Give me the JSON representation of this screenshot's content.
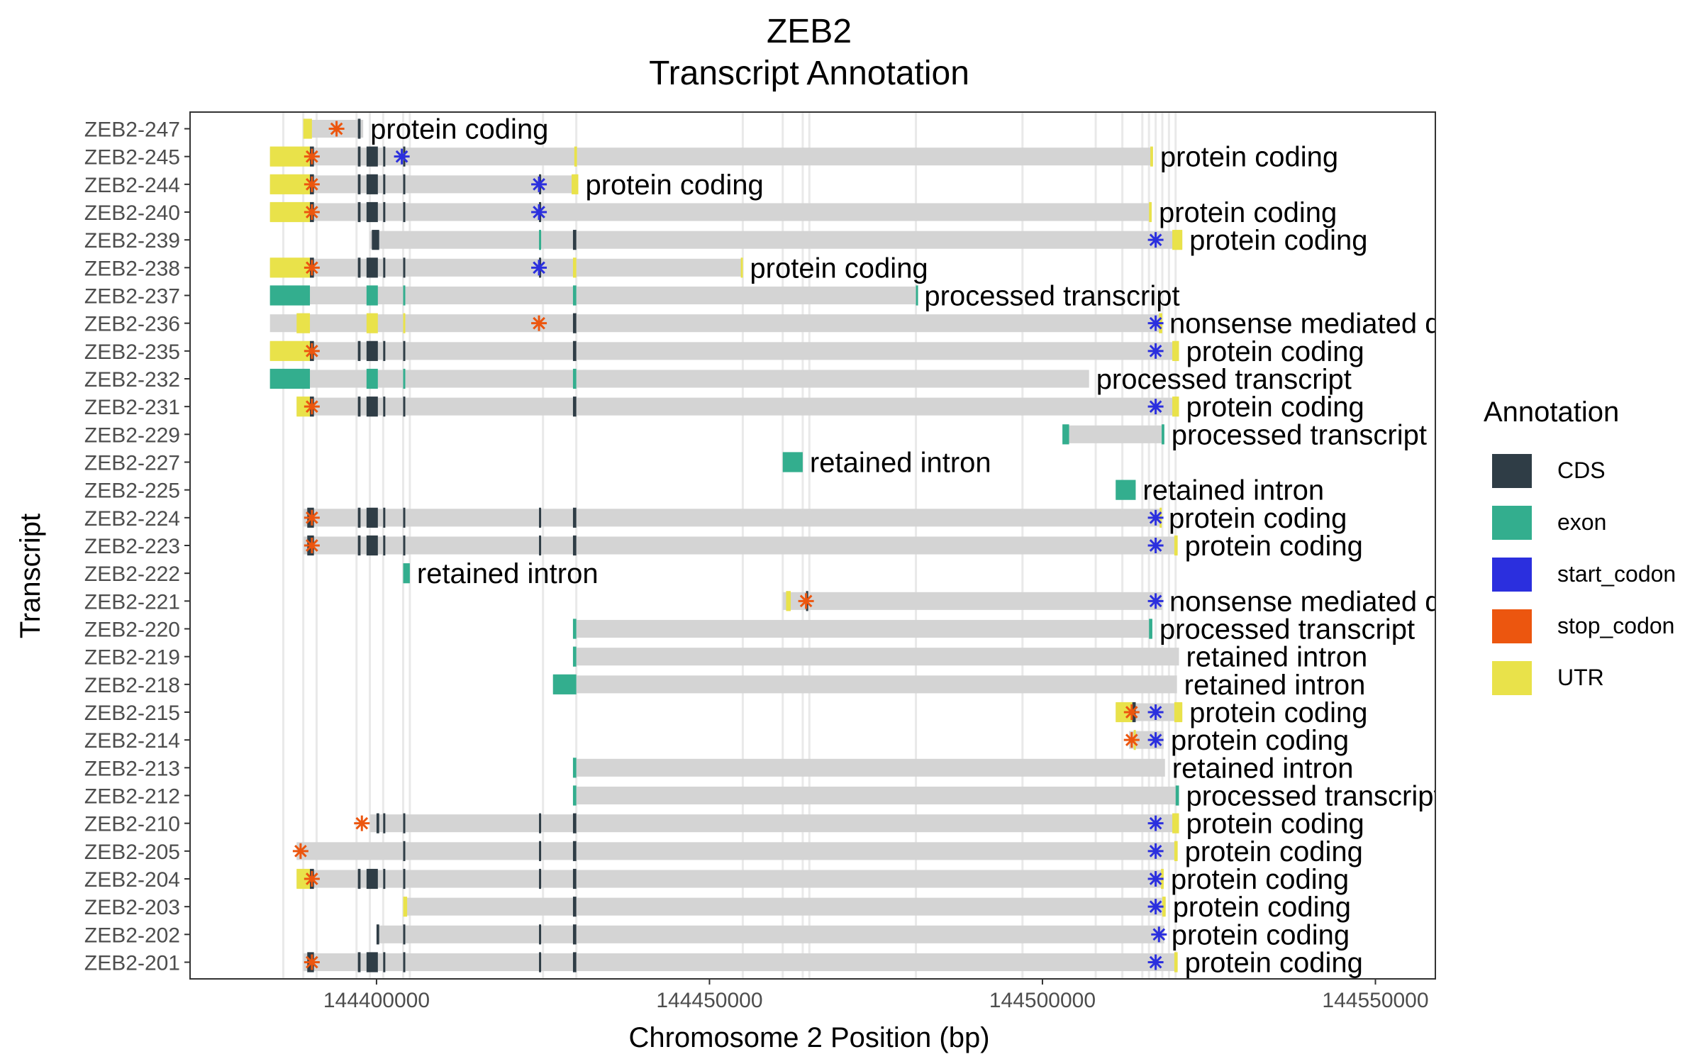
{
  "chart_data": {
    "type": "gene_track",
    "title_line1": "ZEB2",
    "title_line2": "Transcript Annotation",
    "xlabel": "Chromosome 2 Position (bp)",
    "ylabel": "Transcript",
    "xlim": [
      144372000,
      144559000
    ],
    "x_ticks": [
      144400000,
      144450000,
      144500000,
      144550000
    ],
    "x_tick_labels": [
      "144400000",
      "144450000",
      "144500000",
      "144550000"
    ],
    "legend": {
      "title": "Annotation",
      "position": "right",
      "entries": [
        {
          "label": "CDS",
          "color": "#2f3d46"
        },
        {
          "label": "exon",
          "color": "#33ae8e"
        },
        {
          "label": "start_codon",
          "color": "#2b2fde"
        },
        {
          "label": "stop_codon",
          "color": "#ec560f"
        },
        {
          "label": "UTR",
          "color": "#e9e24a"
        }
      ]
    },
    "vlines": [
      144386000,
      144389000,
      144391000,
      144397000,
      144399000,
      144401000,
      144404000,
      144405000,
      144425000,
      144430000,
      144455000,
      144461000,
      144464000,
      144465000,
      144481000,
      144497000,
      144508000,
      144512000,
      144515000,
      144516000,
      144517000,
      144518000,
      144519000,
      144520000
    ],
    "transcripts": [
      {
        "name": "ZEB2-247",
        "label": "protein coding",
        "start": 144389000,
        "end": 144398000,
        "utr": [
          [
            144389000,
            144390300
          ]
        ],
        "cds": [
          [
            144397200,
            144397600
          ]
        ],
        "exon": [],
        "stop": [
          144394000
        ],
        "startc": []
      },
      {
        "name": "ZEB2-245",
        "label": "protein coding",
        "start": 144384000,
        "end": 144516600,
        "utr": [
          [
            144384000,
            144390000
          ],
          [
            144429700,
            144430100
          ],
          [
            144516200,
            144516600
          ]
        ],
        "cds": [
          [
            144390000,
            144390600
          ],
          [
            144397200,
            144397600
          ],
          [
            144398500,
            144400200
          ],
          [
            144401000,
            144401300
          ],
          [
            144404000,
            144404300
          ]
        ],
        "exon": [],
        "stop": [
          144390300
        ],
        "startc": [
          144403800
        ]
      },
      {
        "name": "ZEB2-244",
        "label": "protein coding",
        "start": 144384000,
        "end": 144430300,
        "utr": [
          [
            144384000,
            144390000
          ],
          [
            144429300,
            144430300
          ]
        ],
        "cds": [
          [
            144390000,
            144390600
          ],
          [
            144397200,
            144397600
          ],
          [
            144398500,
            144400200
          ],
          [
            144401000,
            144401300
          ],
          [
            144404000,
            144404300
          ],
          [
            144424400,
            144424700
          ]
        ],
        "exon": [],
        "stop": [
          144390300
        ],
        "startc": [
          144424400
        ]
      },
      {
        "name": "ZEB2-240",
        "label": "protein coding",
        "start": 144384000,
        "end": 144516400,
        "utr": [
          [
            144384000,
            144390000
          ],
          [
            144516000,
            144516400
          ]
        ],
        "cds": [
          [
            144390000,
            144390600
          ],
          [
            144397200,
            144397600
          ],
          [
            144398500,
            144400200
          ],
          [
            144401000,
            144401300
          ],
          [
            144404000,
            144404300
          ],
          [
            144424400,
            144424700
          ]
        ],
        "exon": [],
        "stop": [
          144390300
        ],
        "startc": [
          144424400
        ]
      },
      {
        "name": "ZEB2-239",
        "label": "protein coding",
        "start": 144399000,
        "end": 144521000,
        "utr": [
          [
            144519500,
            144521000
          ]
        ],
        "cds": [
          [
            144399300,
            144400400
          ],
          [
            144429500,
            144430000
          ]
        ],
        "exon": [
          [
            144424400,
            144424600
          ]
        ],
        "stop": [],
        "startc": [
          144517000
        ]
      },
      {
        "name": "ZEB2-238",
        "label": "protein coding",
        "start": 144384000,
        "end": 144455000,
        "utr": [
          [
            144384000,
            144390000
          ],
          [
            144429500,
            144430000
          ],
          [
            144454700,
            144455000
          ]
        ],
        "cds": [
          [
            144390000,
            144390600
          ],
          [
            144397200,
            144397600
          ],
          [
            144398500,
            144400200
          ],
          [
            144401000,
            144401300
          ],
          [
            144404000,
            144404300
          ],
          [
            144424400,
            144424700
          ]
        ],
        "exon": [],
        "stop": [
          144390300
        ],
        "startc": [
          144424400
        ]
      },
      {
        "name": "ZEB2-237",
        "label": "processed transcript",
        "start": 144384000,
        "end": 144481200,
        "utr": [],
        "cds": [],
        "exon": [
          [
            144384000,
            144390000
          ],
          [
            144398500,
            144400200
          ],
          [
            144404000,
            144404300
          ],
          [
            144429500,
            144430000
          ],
          [
            144481000,
            144481200
          ]
        ],
        "stop": [],
        "startc": []
      },
      {
        "name": "ZEB2-236",
        "label": "nonsense mediated decay",
        "start": 144384000,
        "end": 144518000,
        "utr": [
          [
            144388000,
            144390000
          ],
          [
            144398500,
            144400200
          ],
          [
            144404000,
            144404300
          ],
          [
            144517500,
            144518000
          ]
        ],
        "cds": [
          [
            144429500,
            144430000
          ]
        ],
        "exon": [],
        "stop": [
          144424400
        ],
        "startc": [
          144517000
        ]
      },
      {
        "name": "ZEB2-235",
        "label": "protein coding",
        "start": 144384000,
        "end": 144520500,
        "utr": [
          [
            144384000,
            144390000
          ],
          [
            144519500,
            144520500
          ]
        ],
        "cds": [
          [
            144390000,
            144390600
          ],
          [
            144397200,
            144397600
          ],
          [
            144398500,
            144400200
          ],
          [
            144401000,
            144401300
          ],
          [
            144404000,
            144404300
          ],
          [
            144429500,
            144430000
          ]
        ],
        "exon": [],
        "stop": [
          144390300
        ],
        "startc": [
          144517000
        ]
      },
      {
        "name": "ZEB2-232",
        "label": "processed transcript",
        "start": 144384000,
        "end": 144507000,
        "utr": [],
        "cds": [],
        "exon": [
          [
            144384000,
            144390000
          ],
          [
            144398500,
            144400200
          ],
          [
            144404000,
            144404300
          ],
          [
            144429500,
            144430000
          ]
        ],
        "stop": [],
        "startc": []
      },
      {
        "name": "ZEB2-231",
        "label": "protein coding",
        "start": 144388000,
        "end": 144520500,
        "utr": [
          [
            144388000,
            144390000
          ],
          [
            144519500,
            144520500
          ]
        ],
        "cds": [
          [
            144390000,
            144390600
          ],
          [
            144397200,
            144397600
          ],
          [
            144398500,
            144400200
          ],
          [
            144401000,
            144401300
          ],
          [
            144404000,
            144404300
          ],
          [
            144429500,
            144430000
          ]
        ],
        "exon": [],
        "stop": [
          144390300
        ],
        "startc": [
          144517000
        ]
      },
      {
        "name": "ZEB2-229",
        "label": "processed transcript",
        "start": 144503000,
        "end": 144518300,
        "utr": [],
        "cds": [],
        "exon": [
          [
            144503000,
            144504000
          ],
          [
            144517900,
            144518300
          ]
        ],
        "stop": [],
        "startc": []
      },
      {
        "name": "ZEB2-227",
        "label": "retained intron",
        "start": 144461000,
        "end": 144464000,
        "utr": [],
        "cds": [],
        "exon": [
          [
            144461000,
            144464000
          ]
        ],
        "stop": [],
        "startc": []
      },
      {
        "name": "ZEB2-225",
        "label": "retained intron",
        "start": 144511000,
        "end": 144514000,
        "utr": [],
        "cds": [],
        "exon": [
          [
            144511000,
            144514000
          ]
        ],
        "stop": [],
        "startc": []
      },
      {
        "name": "ZEB2-224",
        "label": "protein coding",
        "start": 144389000,
        "end": 144517900,
        "utr": [
          [
            144517600,
            144517900
          ]
        ],
        "cds": [
          [
            144389600,
            144390600
          ],
          [
            144397200,
            144397600
          ],
          [
            144398500,
            144400200
          ],
          [
            144401000,
            144401300
          ],
          [
            144404000,
            144404300
          ],
          [
            144424400,
            144424700
          ],
          [
            144429500,
            144430000
          ]
        ],
        "exon": [],
        "stop": [
          144390300
        ],
        "startc": [
          144517000
        ]
      },
      {
        "name": "ZEB2-223",
        "label": "protein coding",
        "start": 144389000,
        "end": 144520300,
        "utr": [
          [
            144519800,
            144520300
          ]
        ],
        "cds": [
          [
            144389600,
            144390600
          ],
          [
            144397200,
            144397600
          ],
          [
            144398500,
            144400200
          ],
          [
            144401000,
            144401300
          ],
          [
            144404000,
            144404300
          ],
          [
            144424400,
            144424700
          ],
          [
            144429500,
            144430000
          ]
        ],
        "exon": [],
        "stop": [
          144390300
        ],
        "startc": [
          144517000
        ]
      },
      {
        "name": "ZEB2-222",
        "label": "retained intron",
        "start": 144404000,
        "end": 144405000,
        "utr": [],
        "cds": [],
        "exon": [
          [
            144404000,
            144405000
          ]
        ],
        "stop": [],
        "startc": []
      },
      {
        "name": "ZEB2-221",
        "label": "nonsense mediated decay",
        "start": 144461000,
        "end": 144518000,
        "utr": [
          [
            144461500,
            144462200
          ]
        ],
        "cds": [
          [
            144464500,
            144464800
          ]
        ],
        "exon": [],
        "stop": [
          144464500
        ],
        "startc": [
          144517000
        ]
      },
      {
        "name": "ZEB2-220",
        "label": "processed transcript",
        "start": 144429500,
        "end": 144516500,
        "utr": [],
        "cds": [],
        "exon": [
          [
            144429500,
            144430000
          ],
          [
            144516000,
            144516500
          ]
        ],
        "stop": [],
        "startc": []
      },
      {
        "name": "ZEB2-219",
        "label": "retained intron",
        "start": 144429500,
        "end": 144520500,
        "utr": [],
        "cds": [],
        "exon": [
          [
            144429500,
            144430000
          ]
        ],
        "stop": [],
        "startc": []
      },
      {
        "name": "ZEB2-218",
        "label": "retained intron",
        "start": 144426500,
        "end": 144520200,
        "utr": [],
        "cds": [],
        "exon": [
          [
            144426500,
            144430000
          ]
        ],
        "stop": [],
        "startc": []
      },
      {
        "name": "ZEB2-215",
        "label": "protein coding",
        "start": 144511000,
        "end": 144521000,
        "utr": [
          [
            144511000,
            144513500
          ],
          [
            144519800,
            144521000
          ]
        ],
        "cds": [
          [
            144513500,
            144514000
          ]
        ],
        "exon": [],
        "stop": [
          144513400
        ],
        "startc": [
          144517000
        ]
      },
      {
        "name": "ZEB2-214",
        "label": "protein coding",
        "start": 144513000,
        "end": 144518200,
        "utr": [
          [
            144513700,
            144514000
          ]
        ],
        "cds": [],
        "exon": [],
        "stop": [
          144513400
        ],
        "startc": [
          144517000
        ]
      },
      {
        "name": "ZEB2-213",
        "label": "retained intron",
        "start": 144429500,
        "end": 144518400,
        "utr": [],
        "cds": [],
        "exon": [
          [
            144429500,
            144430000
          ]
        ],
        "stop": [],
        "startc": []
      },
      {
        "name": "ZEB2-212",
        "label": "processed transcript",
        "start": 144429500,
        "end": 144520500,
        "utr": [],
        "cds": [],
        "exon": [
          [
            144429500,
            144430000
          ],
          [
            144520000,
            144520500
          ]
        ],
        "stop": [],
        "startc": []
      },
      {
        "name": "ZEB2-210",
        "label": "protein coding",
        "start": 144399000,
        "end": 144520500,
        "utr": [
          [
            144519500,
            144520500
          ]
        ],
        "cds": [
          [
            144400000,
            144400400
          ],
          [
            144401000,
            144401300
          ],
          [
            144404000,
            144404300
          ],
          [
            144424400,
            144424700
          ],
          [
            144429500,
            144430000
          ]
        ],
        "exon": [],
        "stop": [
          144397800
        ],
        "startc": [
          144517000
        ]
      },
      {
        "name": "ZEB2-205",
        "label": "protein coding",
        "start": 144388000,
        "end": 144520300,
        "utr": [
          [
            144519800,
            144520300
          ]
        ],
        "cds": [
          [
            144404000,
            144404300
          ],
          [
            144424400,
            144424700
          ],
          [
            144429500,
            144430000
          ]
        ],
        "exon": [],
        "stop": [
          144388600
        ],
        "startc": [
          144517000
        ]
      },
      {
        "name": "ZEB2-204",
        "label": "protein coding",
        "start": 144388000,
        "end": 144518200,
        "utr": [
          [
            144388000,
            144390000
          ],
          [
            144517800,
            144518200
          ]
        ],
        "cds": [
          [
            144390000,
            144390600
          ],
          [
            144397200,
            144397600
          ],
          [
            144398500,
            144400200
          ],
          [
            144401000,
            144401300
          ],
          [
            144404000,
            144404300
          ],
          [
            144424400,
            144424700
          ],
          [
            144429500,
            144430000
          ]
        ],
        "exon": [],
        "stop": [
          144390300
        ],
        "startc": [
          144517000
        ]
      },
      {
        "name": "ZEB2-203",
        "label": "protein coding",
        "start": 144404000,
        "end": 144518500,
        "utr": [
          [
            144404000,
            144404600
          ],
          [
            144518000,
            144518500
          ]
        ],
        "cds": [
          [
            144429500,
            144430000
          ]
        ],
        "exon": [],
        "stop": [],
        "startc": [
          144517000
        ]
      },
      {
        "name": "ZEB2-202",
        "label": "protein coding",
        "start": 144400000,
        "end": 144518300,
        "utr": [],
        "cds": [
          [
            144400000,
            144400400
          ],
          [
            144404000,
            144404300
          ],
          [
            144424400,
            144424700
          ],
          [
            144429500,
            144430000
          ]
        ],
        "exon": [],
        "stop": [],
        "startc": [
          144517500
        ]
      },
      {
        "name": "ZEB2-201",
        "label": "protein coding",
        "start": 144389000,
        "end": 144520300,
        "utr": [
          [
            144519800,
            144520300
          ]
        ],
        "cds": [
          [
            144389600,
            144390600
          ],
          [
            144397200,
            144397600
          ],
          [
            144398500,
            144400200
          ],
          [
            144401000,
            144401300
          ],
          [
            144404000,
            144404300
          ],
          [
            144424400,
            144424700
          ],
          [
            144429500,
            144430000
          ]
        ],
        "exon": [],
        "stop": [
          144390300
        ],
        "startc": [
          144517000
        ]
      }
    ]
  }
}
